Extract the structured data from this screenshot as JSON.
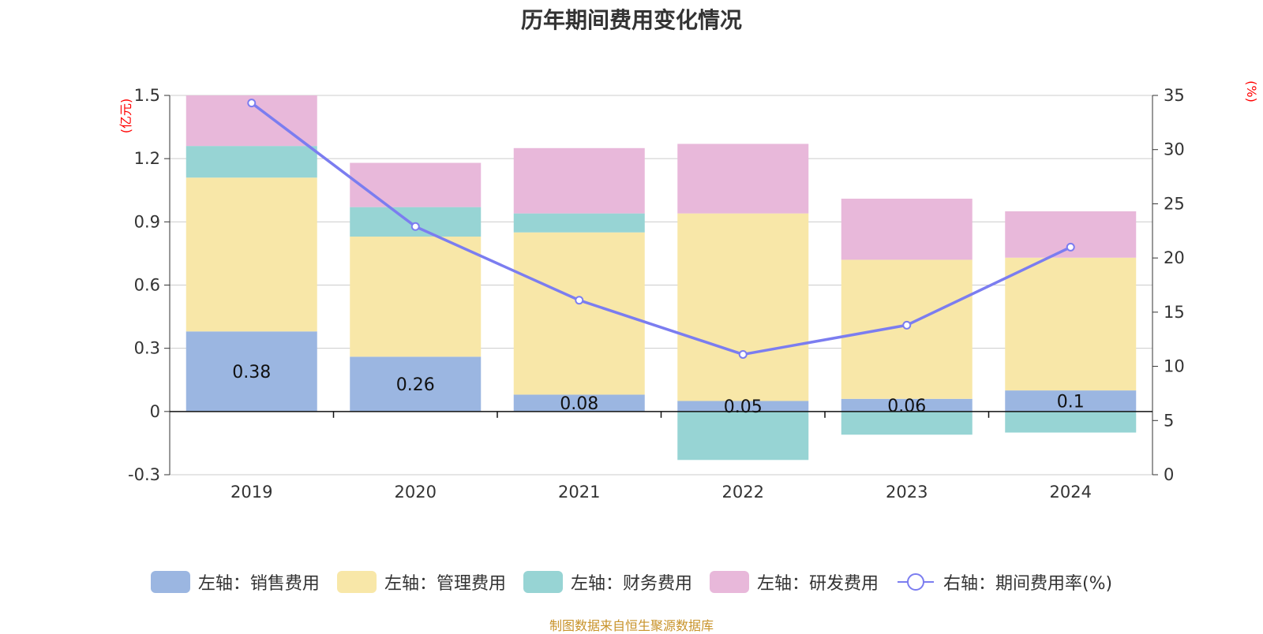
{
  "title": "历年期间费用变化情况",
  "source": "制图数据来自恒生聚源数据库",
  "colors": {
    "sales": "#9bb6e1",
    "admin": "#f8e7a8",
    "finance": "#97d4d4",
    "rnd": "#e8b8da",
    "rate_line": "#7b7df0",
    "unit_text": "#ff0000",
    "source_text": "#c8932a"
  },
  "chart_data": {
    "type": "bar",
    "stacked": true,
    "title": "历年期间费用变化情况",
    "categories": [
      "2019",
      "2020",
      "2021",
      "2022",
      "2023",
      "2024"
    ],
    "left_axis": {
      "unit": "(亿元)",
      "ylim": [
        -0.3,
        1.5
      ],
      "ticks": [
        "1.5",
        "1.2",
        "0.9",
        "0.6",
        "0.3",
        "0",
        "-0.3"
      ]
    },
    "right_axis": {
      "unit": "(%)",
      "ylim": [
        0,
        35
      ],
      "ticks": [
        "35",
        "30",
        "25",
        "20",
        "15",
        "10",
        "5",
        "0"
      ]
    },
    "series": [
      {
        "name": "左轴：销售费用",
        "axis": "left",
        "type": "bar",
        "color": "#9bb6e1",
        "values": [
          0.38,
          0.26,
          0.08,
          0.05,
          0.06,
          0.1
        ],
        "labels": [
          "0.38",
          "0.26",
          "0.08",
          "0.05",
          "0.06",
          "0.1"
        ]
      },
      {
        "name": "左轴：管理费用",
        "axis": "left",
        "type": "bar",
        "color": "#f8e7a8",
        "values": [
          0.73,
          0.57,
          0.77,
          0.89,
          0.66,
          0.63
        ]
      },
      {
        "name": "左轴：财务费用",
        "axis": "left",
        "type": "bar",
        "color": "#97d4d4",
        "values": [
          0.15,
          0.14,
          0.09,
          -0.23,
          -0.11,
          -0.1
        ]
      },
      {
        "name": "左轴：研发费用",
        "axis": "left",
        "type": "bar",
        "color": "#e8b8da",
        "values": [
          0.24,
          0.21,
          0.31,
          0.33,
          0.29,
          0.22
        ]
      },
      {
        "name": "右轴：期间费用率(%)",
        "axis": "right",
        "type": "line",
        "color": "#7b7df0",
        "values": [
          34.3,
          22.9,
          16.1,
          11.1,
          13.8,
          21.0
        ]
      }
    ],
    "grid": true,
    "legend_position": "bottom"
  }
}
